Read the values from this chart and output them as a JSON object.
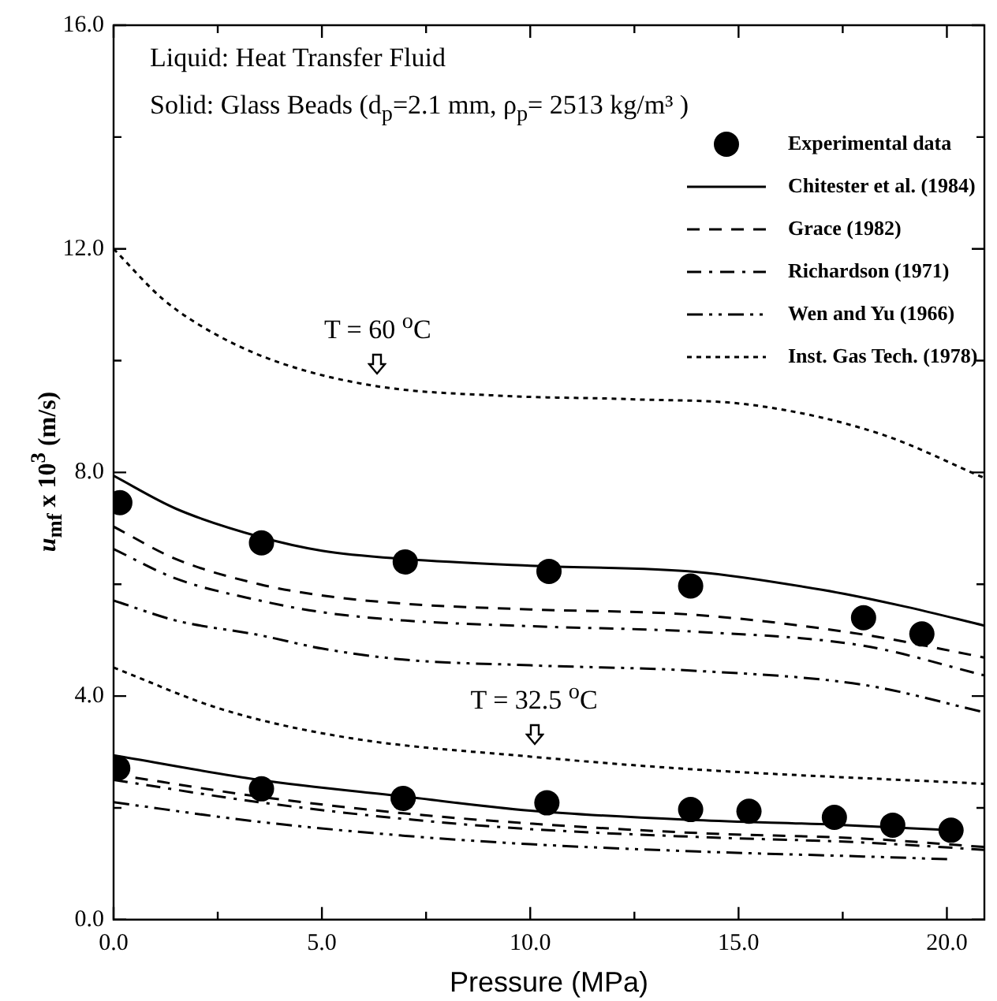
{
  "chart_data": {
    "type": "line",
    "xlabel": "Pressure (MPa)",
    "ylabel": "u$_{mf}$ x 10$^{3}$ (m/s)",
    "xlim": [
      0,
      20.9
    ],
    "ylim": [
      0,
      16
    ],
    "xticks": [
      {
        "value": 0,
        "label": "0.0"
      },
      {
        "value": 2.5,
        "label": null
      },
      {
        "value": 5,
        "label": "5.0"
      },
      {
        "value": 7.5,
        "label": null
      },
      {
        "value": 10,
        "label": "10.0"
      },
      {
        "value": 12.5,
        "label": null
      },
      {
        "value": 15,
        "label": "15.0"
      },
      {
        "value": 17.5,
        "label": null
      },
      {
        "value": 20,
        "label": "20.0"
      }
    ],
    "yticks": [
      {
        "value": 0,
        "label": "0.0"
      },
      {
        "value": 2,
        "label": null
      },
      {
        "value": 4,
        "label": "4.0"
      },
      {
        "value": 6,
        "label": null
      },
      {
        "value": 8,
        "label": "8.0"
      },
      {
        "value": 10,
        "label": null
      },
      {
        "value": 12,
        "label": "12.0"
      },
      {
        "value": 14,
        "label": null
      },
      {
        "value": 16,
        "label": "16.0"
      }
    ],
    "grid": false,
    "legend": "top right",
    "annotations": [
      "Liquid: Heat Transfer Fluid",
      "Solid: Glass Beads (d$_{p}$=2.1 mm, ρ$_{p}$= 2513 kg/m³ )",
      {
        "text": "T = 60 $^{o}$C",
        "x": 6.34,
        "y": 9.54
      },
      {
        "text": "T = 32.5 $^{o}$C",
        "x": 10.1,
        "y": 2.91
      }
    ],
    "series": [
      {
        "name": "Experimental data",
        "type": "scatter",
        "marker": "circle",
        "color": "#000000",
        "x": [
          0.15,
          3.55,
          7.0,
          10.45,
          13.85,
          18.0,
          19.4,
          0.1,
          3.55,
          6.95,
          10.4,
          13.85,
          15.25,
          17.3,
          18.7,
          20.1
        ],
        "values": [
          7.46,
          6.74,
          6.4,
          6.23,
          5.97,
          5.4,
          5.11,
          2.71,
          2.34,
          2.17,
          2.09,
          1.97,
          1.94,
          1.83,
          1.69,
          1.6
        ]
      },
      {
        "name": "Chitester et al. (1984)",
        "line_style": "solid",
        "color": "#000000",
        "x": [
          0,
          1.5,
          3.5,
          5,
          7,
          10,
          14,
          17,
          19,
          20.9
        ],
        "values": [
          7.94,
          7.35,
          6.85,
          6.6,
          6.45,
          6.33,
          6.22,
          5.9,
          5.6,
          5.26
        ]
      },
      {
        "line_style": "solid",
        "color": "#000000",
        "x": [
          0,
          3.5,
          7,
          10,
          14,
          17.3,
          20.1
        ],
        "values": [
          2.94,
          2.5,
          2.2,
          1.95,
          1.78,
          1.7,
          1.6
        ]
      },
      {
        "name": "Grace (1982)",
        "line_style": "dashed",
        "color": "#000000",
        "x": [
          0,
          1.5,
          3.5,
          5,
          7,
          10,
          14,
          18,
          20.9
        ],
        "values": [
          7.03,
          6.45,
          6.0,
          5.8,
          5.65,
          5.55,
          5.45,
          5.1,
          4.69
        ]
      },
      {
        "line_style": "dashed",
        "color": "#000000",
        "x": [
          0,
          3.5,
          7,
          10,
          14,
          18,
          20.9
        ],
        "values": [
          2.6,
          2.2,
          1.9,
          1.72,
          1.55,
          1.45,
          1.3
        ]
      },
      {
        "name": "Richardson (1971)",
        "line_style": "dashdot",
        "color": "#000000",
        "x": [
          0,
          1.5,
          3.5,
          5,
          7,
          10,
          14,
          18,
          20.9
        ],
        "values": [
          6.63,
          6.1,
          5.71,
          5.5,
          5.35,
          5.25,
          5.15,
          4.9,
          4.37
        ]
      },
      {
        "line_style": "dashdot",
        "color": "#000000",
        "x": [
          0,
          3.5,
          7,
          10,
          14,
          18,
          20.9
        ],
        "values": [
          2.5,
          2.1,
          1.8,
          1.62,
          1.48,
          1.38,
          1.25
        ]
      },
      {
        "name": "Wen and Yu (1966)",
        "line_style": "dashdotdot",
        "color": "#000000",
        "x": [
          0,
          1.5,
          3.5,
          5,
          7,
          10,
          14,
          18,
          20.9
        ],
        "values": [
          5.71,
          5.35,
          5.09,
          4.85,
          4.65,
          4.55,
          4.45,
          4.2,
          3.71
        ]
      },
      {
        "line_style": "dashdotdot",
        "color": "#000000",
        "x": [
          0,
          3.5,
          7,
          10,
          14,
          18,
          20.1
        ],
        "values": [
          2.1,
          1.75,
          1.5,
          1.35,
          1.22,
          1.13,
          1.08
        ]
      },
      {
        "name": "Inst. Gas Tech. (1978)",
        "line_style": "dotted",
        "color": "#000000",
        "x": [
          0,
          1.2,
          2.5,
          4.08,
          6.34,
          9.36,
          12.4,
          15.4,
          18.4,
          20.9
        ],
        "values": [
          12.0,
          11.09,
          10.45,
          9.94,
          9.54,
          9.37,
          9.31,
          9.2,
          8.69,
          7.9
        ]
      },
      {
        "line_style": "dotted",
        "color": "#000000",
        "x": [
          0,
          2.57,
          5.58,
          10.1,
          13.9,
          20.9
        ],
        "values": [
          4.51,
          3.77,
          3.26,
          2.91,
          2.69,
          2.43
        ]
      }
    ]
  }
}
